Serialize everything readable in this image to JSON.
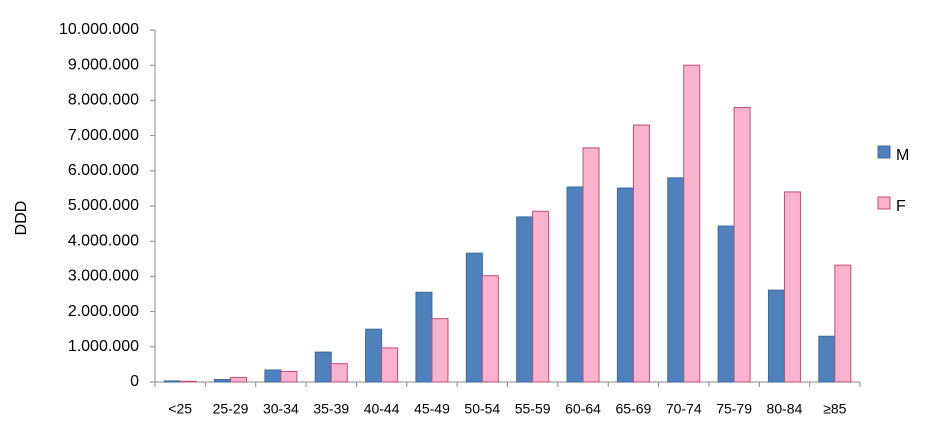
{
  "chart_data": {
    "type": "bar",
    "y_label": "DDD",
    "categories": [
      "<25",
      "25-29",
      "30-34",
      "35-39",
      "40-44",
      "45-49",
      "50-54",
      "55-59",
      "60-64",
      "65-69",
      "70-74",
      "75-79",
      "80-84",
      "≥85"
    ],
    "series": [
      {
        "name": "M",
        "color": "#4f81bd",
        "values": [
          30000,
          70000,
          340000,
          850000,
          1500000,
          2550000,
          3660000,
          4690000,
          5540000,
          5510000,
          5800000,
          4430000,
          2610000,
          1300000
        ]
      },
      {
        "name": "F",
        "color": "#f9b3cf",
        "values": [
          20000,
          130000,
          300000,
          520000,
          970000,
          1800000,
          3020000,
          4850000,
          6650000,
          7300000,
          9000000,
          7800000,
          5400000,
          3320000
        ]
      }
    ],
    "ylim": [
      0,
      10000000
    ],
    "yticks": [
      0,
      {
        "value": 1000000,
        "label": "1.000.000"
      },
      {
        "value": 2000000,
        "label": "2.000.000"
      },
      {
        "value": 3000000,
        "label": "3.000.000"
      },
      {
        "value": 4000000,
        "label": "4.000.000"
      },
      {
        "value": 5000000,
        "label": "5.000.000"
      },
      {
        "value": 6000000,
        "label": "6.000.000"
      },
      {
        "value": 7000000,
        "label": "7.000.000"
      },
      {
        "value": 8000000,
        "label": "8.000.000"
      },
      {
        "value": 9000000,
        "label": "9.000.000"
      },
      {
        "value": 10000000,
        "label": "10.000.000"
      }
    ],
    "grid": false,
    "legend": "right"
  }
}
